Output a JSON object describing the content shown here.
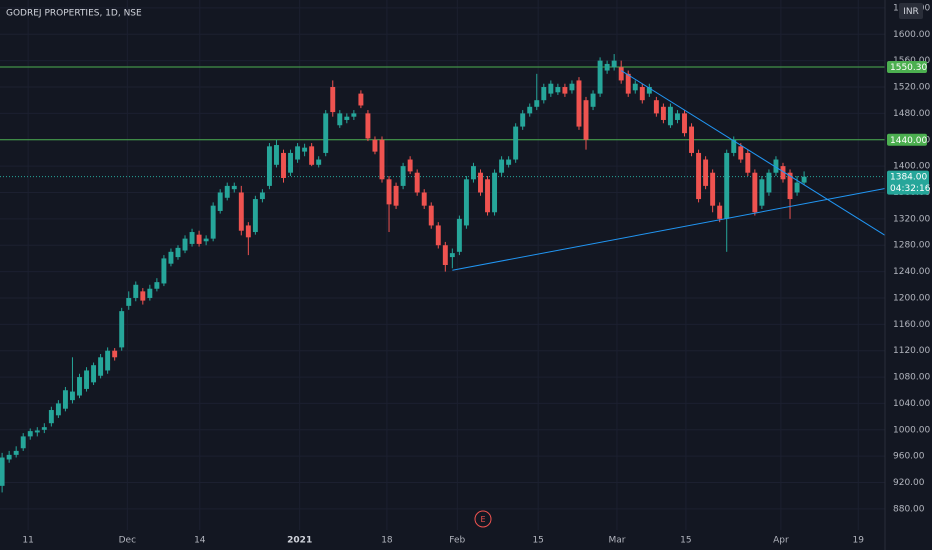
{
  "chart_data": {
    "type": "candlestick",
    "title": "GODREJ PROPERTIES, 1D, NSE",
    "currency": "INR",
    "event_marker": "E",
    "up_color": "#26a69a",
    "down_color": "#ef5350",
    "grid": true,
    "xlim": [
      -0.3,
      125.5
    ],
    "ylim": [
      848,
      1652
    ],
    "xticks": [
      {
        "value": 3.7,
        "label": "11"
      },
      {
        "value": 17.8,
        "label": "Dec"
      },
      {
        "value": 28.1,
        "label": "14"
      },
      {
        "value": 42.3,
        "label": "2021"
      },
      {
        "value": 54.7,
        "label": "18"
      },
      {
        "value": 64.7,
        "label": "Feb"
      },
      {
        "value": 76.2,
        "label": "15"
      },
      {
        "value": 87.4,
        "label": "Mar"
      },
      {
        "value": 97.2,
        "label": "15"
      },
      {
        "value": 110.7,
        "label": "Apr"
      },
      {
        "value": 121.7,
        "label": "19"
      }
    ],
    "yticks": [
      {
        "value": 880,
        "label": "880.00"
      },
      {
        "value": 920,
        "label": "920.00"
      },
      {
        "value": 960,
        "label": "960.00"
      },
      {
        "value": 1000,
        "label": "1000.00"
      },
      {
        "value": 1040,
        "label": "1040.00"
      },
      {
        "value": 1080,
        "label": "1080.00"
      },
      {
        "value": 1120,
        "label": "1120.00"
      },
      {
        "value": 1160,
        "label": "1160.00"
      },
      {
        "value": 1200,
        "label": "1200.00"
      },
      {
        "value": 1240,
        "label": "1240.00"
      },
      {
        "value": 1280,
        "label": "1280.00"
      },
      {
        "value": 1320,
        "label": "1320.00"
      },
      {
        "value": 1360,
        "label": "1360.00"
      },
      {
        "value": 1400,
        "label": "1400.00"
      },
      {
        "value": 1440,
        "label": "1440.00"
      },
      {
        "value": 1480,
        "label": "1480.00"
      },
      {
        "value": 1520,
        "label": "1520.00"
      },
      {
        "value": 1560,
        "label": "1560.00"
      },
      {
        "value": 1600,
        "label": "1600.00"
      },
      {
        "value": 1640,
        "label": "1640.00"
      }
    ],
    "open": [
      915,
      955,
      962,
      972,
      990,
      996,
      1000,
      1010,
      1022,
      1032,
      1045,
      1052,
      1062,
      1072,
      1082,
      1090,
      1120,
      1125,
      1188,
      1200,
      1210,
      1200,
      1214,
      1222,
      1252,
      1262,
      1272,
      1282,
      1296,
      1286,
      1290,
      1332,
      1352,
      1365,
      1360,
      1310,
      1300,
      1350,
      1370,
      1402,
      1420,
      1390,
      1410,
      1422,
      1430,
      1402,
      1420,
      1520,
      1462,
      1470,
      1475,
      1510,
      1480,
      1440,
      1440,
      1380,
      1370,
      1370,
      1410,
      1390,
      1360,
      1340,
      1310,
      1280,
      1262,
      1270,
      1310,
      1380,
      1390,
      1380,
      1330,
      1390,
      1402,
      1410,
      1460,
      1480,
      1490,
      1500,
      1510,
      1512,
      1520,
      1515,
      1530,
      1500,
      1490,
      1510,
      1545,
      1550,
      1550,
      1540,
      1515,
      1520,
      1510,
      1500,
      1490,
      1462,
      1470,
      1480,
      1460,
      1420,
      1410,
      1390,
      1340,
      1320,
      1420,
      1430,
      1420,
      1390,
      1340,
      1360,
      1390,
      1400,
      1390,
      1360,
      1375
    ],
    "high": [
      965,
      968,
      975,
      995,
      1002,
      1004,
      1010,
      1035,
      1045,
      1065,
      1110,
      1085,
      1095,
      1102,
      1115,
      1125,
      1124,
      1185,
      1210,
      1225,
      1215,
      1220,
      1230,
      1265,
      1275,
      1280,
      1295,
      1305,
      1302,
      1295,
      1345,
      1365,
      1375,
      1375,
      1370,
      1315,
      1355,
      1365,
      1435,
      1440,
      1425,
      1425,
      1435,
      1434,
      1435,
      1415,
      1485,
      1530,
      1485,
      1480,
      1485,
      1515,
      1485,
      1445,
      1445,
      1385,
      1375,
      1405,
      1415,
      1395,
      1365,
      1345,
      1315,
      1285,
      1275,
      1325,
      1385,
      1405,
      1395,
      1385,
      1395,
      1415,
      1415,
      1465,
      1485,
      1495,
      1540,
      1525,
      1530,
      1525,
      1525,
      1530,
      1535,
      1505,
      1515,
      1565,
      1560,
      1570,
      1560,
      1545,
      1530,
      1525,
      1525,
      1505,
      1495,
      1495,
      1485,
      1485,
      1465,
      1425,
      1415,
      1395,
      1345,
      1425,
      1445,
      1435,
      1425,
      1395,
      1385,
      1395,
      1415,
      1405,
      1395,
      1385,
      1392
    ],
    "low": [
      905,
      950,
      958,
      968,
      985,
      990,
      995,
      1005,
      1018,
      1028,
      1040,
      1048,
      1058,
      1068,
      1078,
      1085,
      1105,
      1120,
      1182,
      1195,
      1190,
      1196,
      1210,
      1218,
      1248,
      1258,
      1268,
      1278,
      1278,
      1280,
      1286,
      1328,
      1348,
      1360,
      1295,
      1265,
      1296,
      1345,
      1365,
      1398,
      1375,
      1385,
      1405,
      1415,
      1400,
      1398,
      1415,
      1475,
      1458,
      1465,
      1470,
      1488,
      1438,
      1418,
      1375,
      1300,
      1335,
      1365,
      1388,
      1355,
      1335,
      1305,
      1275,
      1240,
      1245,
      1265,
      1305,
      1375,
      1355,
      1325,
      1325,
      1385,
      1398,
      1405,
      1455,
      1475,
      1485,
      1495,
      1505,
      1508,
      1505,
      1510,
      1455,
      1425,
      1485,
      1505,
      1540,
      1545,
      1525,
      1505,
      1510,
      1495,
      1505,
      1475,
      1465,
      1458,
      1465,
      1445,
      1415,
      1345,
      1365,
      1330,
      1315,
      1270,
      1415,
      1405,
      1385,
      1325,
      1335,
      1355,
      1385,
      1375,
      1320,
      1355,
      1372
    ],
    "close": [
      958,
      962,
      968,
      990,
      998,
      999,
      1004,
      1030,
      1040,
      1060,
      1058,
      1080,
      1090,
      1098,
      1110,
      1120,
      1110,
      1180,
      1200,
      1220,
      1196,
      1214,
      1224,
      1260,
      1270,
      1276,
      1290,
      1300,
      1282,
      1290,
      1340,
      1360,
      1370,
      1370,
      1302,
      1292,
      1350,
      1360,
      1430,
      1432,
      1382,
      1420,
      1430,
      1428,
      1402,
      1410,
      1480,
      1482,
      1480,
      1475,
      1480,
      1492,
      1442,
      1422,
      1380,
      1342,
      1340,
      1400,
      1392,
      1360,
      1340,
      1310,
      1280,
      1250,
      1268,
      1320,
      1380,
      1400,
      1360,
      1330,
      1390,
      1410,
      1410,
      1460,
      1480,
      1490,
      1500,
      1520,
      1525,
      1520,
      1510,
      1525,
      1460,
      1440,
      1510,
      1560,
      1555,
      1560,
      1530,
      1510,
      1525,
      1500,
      1520,
      1480,
      1470,
      1490,
      1480,
      1450,
      1420,
      1350,
      1370,
      1340,
      1320,
      1420,
      1440,
      1410,
      1390,
      1330,
      1380,
      1390,
      1410,
      1380,
      1350,
      1375,
      1384
    ],
    "levels": [
      {
        "value": 1550.3,
        "label": "1550.30",
        "color": "#4caf50"
      },
      {
        "value": 1440,
        "label": "1440.00",
        "color": "#4caf50"
      }
    ],
    "last_price": {
      "value": 1384,
      "label": "1384.00",
      "countdown": "04:32:16",
      "color": "#26a69a"
    },
    "trendlines": [
      {
        "start": [
          64,
          1242
        ],
        "end": [
          125.5,
          1366
        ],
        "color": "#2196f3"
      },
      {
        "start": [
          88,
          1545
        ],
        "end": [
          125.5,
          1295
        ],
        "color": "#2196f3"
      }
    ]
  }
}
